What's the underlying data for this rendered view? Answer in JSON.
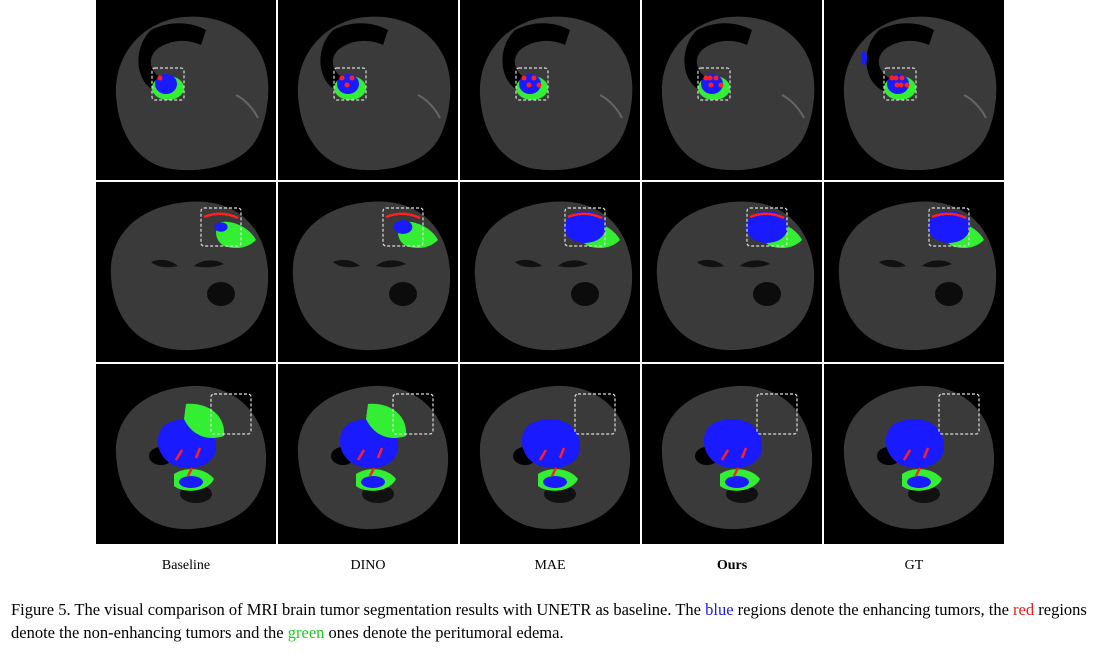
{
  "columns": [
    {
      "id": "baseline",
      "label": "Baseline",
      "bold": false
    },
    {
      "id": "dino",
      "label": "DINO",
      "bold": false
    },
    {
      "id": "mae",
      "label": "MAE",
      "bold": false
    },
    {
      "id": "ours",
      "label": "Ours",
      "bold": true
    },
    {
      "id": "gt",
      "label": "GT",
      "bold": false
    }
  ],
  "colors": {
    "enhancing": "#1a1aff",
    "non_enhancing": "#ff2020",
    "edema": "#33ee33",
    "background": "#000000",
    "brain": "#3a3a3a"
  },
  "caption": {
    "part1": "Figure 5. The visual comparison of MRI brain tumor segmentation results with UNETR as baseline. The ",
    "blue": "blue",
    "part2": " regions denote the enhancing tumors, the ",
    "red": "red",
    "part3": " regions denote the non-enhancing tumors and the ",
    "green": "green",
    "part4": " ones denote the peritumoral edema."
  }
}
